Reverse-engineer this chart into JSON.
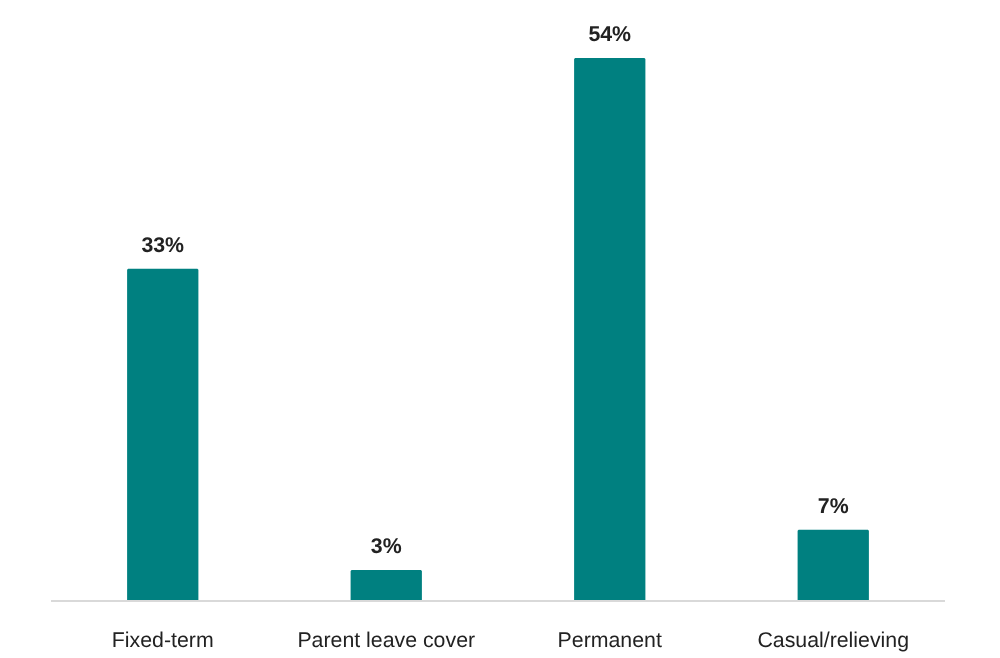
{
  "chart_data": {
    "type": "bar",
    "categories": [
      "Fixed-term",
      "Parent leave cover",
      "Permanent",
      "Casual/relieving"
    ],
    "values": [
      33,
      3,
      54,
      7
    ],
    "value_labels": [
      "33%",
      "3%",
      "54%",
      "7%"
    ],
    "color": "#008080",
    "grid": false
  }
}
